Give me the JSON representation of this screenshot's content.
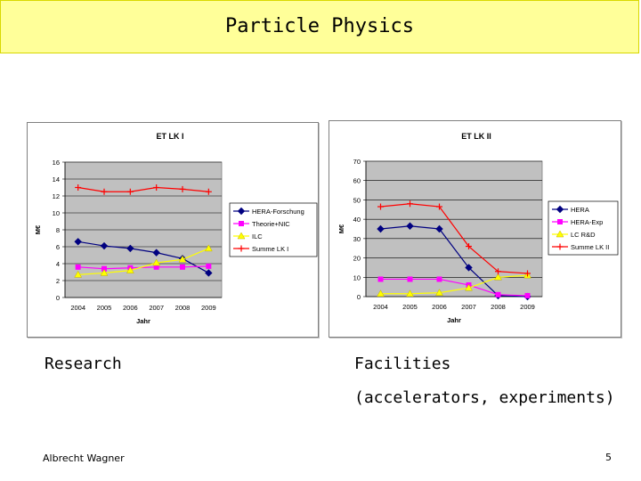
{
  "slide": {
    "title": "Particle Physics",
    "caption_left": "Research",
    "caption_right": "Facilities",
    "caption_right_sub": "(accelerators, experiments)",
    "author": "Albrecht Wagner",
    "page_number": "5"
  },
  "chart_data": [
    {
      "type": "line",
      "title": "ET LK I",
      "xlabel": "Jahr",
      "ylabel": "M€",
      "categories": [
        "2004",
        "2005",
        "2006",
        "2007",
        "2008",
        "2009"
      ],
      "ylim": [
        0,
        16
      ],
      "yticks": [
        0,
        2,
        4,
        6,
        8,
        10,
        12,
        14,
        16
      ],
      "plot_background": "#c0c0c0",
      "legend_position": "right",
      "series": [
        {
          "name": "HERA-Forschung",
          "color": "#000080",
          "marker": "diamond",
          "values": [
            6.6,
            6.1,
            5.8,
            5.3,
            4.6,
            2.9
          ]
        },
        {
          "name": "Theorie+NIC",
          "color": "#ff00ff",
          "marker": "square",
          "values": [
            3.6,
            3.4,
            3.5,
            3.6,
            3.6,
            3.7
          ]
        },
        {
          "name": "ILC",
          "color": "#ffff00",
          "marker": "triangle",
          "values": [
            2.7,
            2.9,
            3.2,
            4.1,
            4.5,
            5.8
          ]
        },
        {
          "name": "Summe LK I",
          "color": "#ff0000",
          "marker": "cross",
          "values": [
            13.0,
            12.5,
            12.5,
            13.0,
            12.8,
            12.5
          ]
        }
      ]
    },
    {
      "type": "line",
      "title": "ET LK II",
      "xlabel": "Jahr",
      "ylabel": "M€",
      "categories": [
        "2004",
        "2005",
        "2006",
        "2007",
        "2008",
        "2009"
      ],
      "ylim": [
        0,
        70
      ],
      "yticks": [
        0,
        10,
        20,
        30,
        40,
        50,
        60,
        70
      ],
      "plot_background": "#c0c0c0",
      "legend_position": "right",
      "series": [
        {
          "name": "HERA",
          "color": "#000080",
          "marker": "diamond",
          "values": [
            35,
            36.5,
            35,
            15,
            0.5,
            0
          ]
        },
        {
          "name": "HERA-Exp",
          "color": "#ff00ff",
          "marker": "square",
          "values": [
            9,
            9,
            9,
            6,
            1,
            0.5
          ]
        },
        {
          "name": "LC R&D",
          "color": "#ffff00",
          "marker": "triangle",
          "values": [
            1.5,
            1.5,
            2,
            4.5,
            10,
            11
          ]
        },
        {
          "name": "Summe LK II",
          "color": "#ff0000",
          "marker": "cross",
          "values": [
            46.5,
            48,
            46.5,
            26,
            13,
            12
          ]
        }
      ]
    }
  ]
}
